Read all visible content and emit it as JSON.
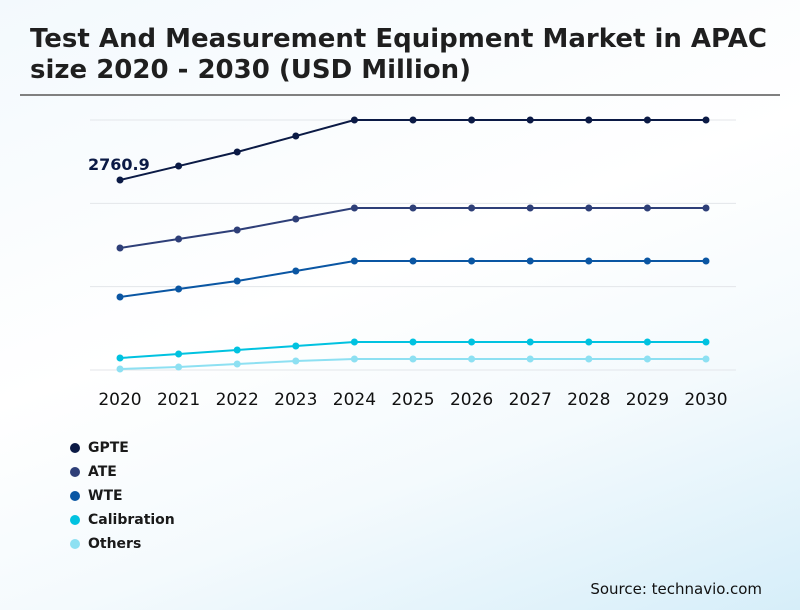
{
  "chart_data": {
    "type": "line",
    "title": "Test And Measurement Equipment Market in APAC size 2020 - 2030 (USD Million)",
    "x": [
      "2020",
      "2021",
      "2022",
      "2023",
      "2024",
      "2025",
      "2026",
      "2027",
      "2028",
      "2029",
      "2030"
    ],
    "ylim": [
      0,
      3633
    ],
    "grid": true,
    "legend_placement": "bottom-left",
    "annotations": [
      {
        "series": "GPTE",
        "x": "2020",
        "label": "2760.9"
      }
    ],
    "series": [
      {
        "name": "GPTE",
        "color": "#0b1a45",
        "values": [
          2760.9,
          2964,
          3168,
          3400,
          3633,
          3633,
          3633,
          3633,
          3633,
          3633,
          3633
        ]
      },
      {
        "name": "ATE",
        "color": "#2e3f78",
        "values": [
          1773,
          1903,
          2034,
          2194,
          2354,
          2354,
          2354,
          2354,
          2354,
          2354,
          2354
        ]
      },
      {
        "name": "WTE",
        "color": "#0a56a3",
        "values": [
          1061,
          1177,
          1293,
          1439,
          1584,
          1584,
          1584,
          1584,
          1584,
          1584,
          1584
        ]
      },
      {
        "name": "Calibration",
        "color": "#00c2e0",
        "values": [
          174,
          232,
          291,
          349,
          407,
          407,
          407,
          407,
          407,
          407,
          407
        ]
      },
      {
        "name": "Others",
        "color": "#8de0f2",
        "values": [
          15,
          44,
          87,
          131,
          160,
          160,
          160,
          160,
          160,
          160,
          160
        ]
      }
    ]
  },
  "source": "Source: technavio.com"
}
